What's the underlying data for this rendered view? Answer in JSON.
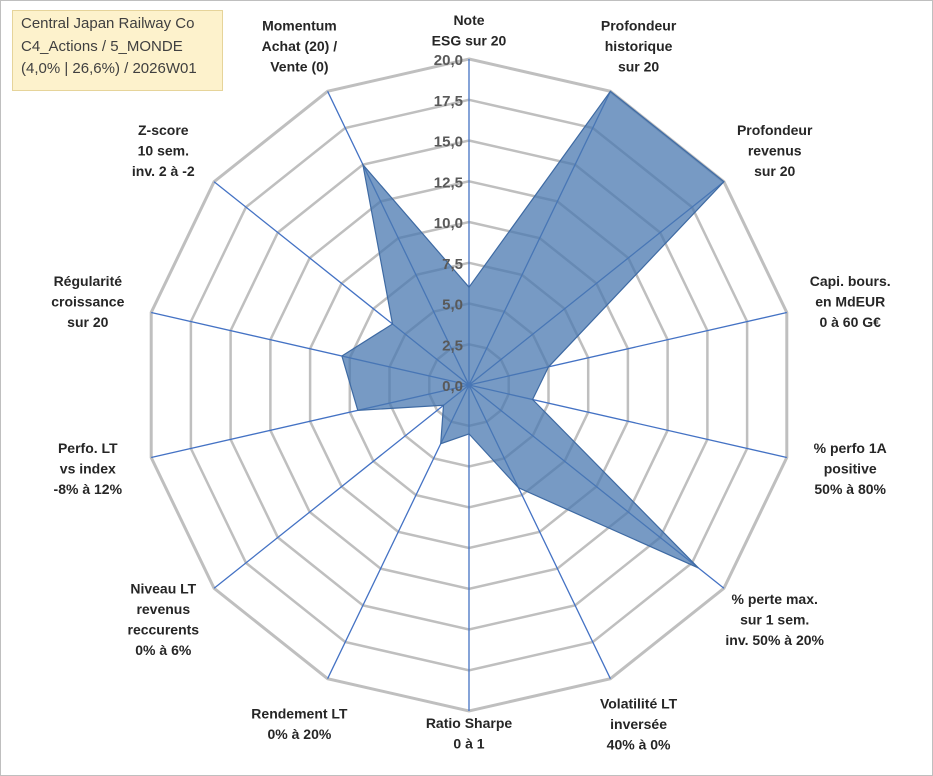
{
  "title_box": {
    "line1": "Central Japan Railway Co",
    "line2": "C4_Actions / 5_MONDE",
    "line3": "(4,0% | 26,6%) / 2026W01"
  },
  "chart_data": {
    "type": "radar",
    "title": "Central Japan Railway Co",
    "rmin": 0,
    "rmax": 20,
    "ticks": [
      0,
      2.5,
      5,
      7.5,
      10,
      12.5,
      15,
      17.5,
      20
    ],
    "tick_labels": [
      "0,0",
      "2,5",
      "5,0",
      "7,5",
      "10,0",
      "12,5",
      "15,0",
      "17,5",
      "20,0"
    ],
    "axes": [
      {
        "label": [
          "Note",
          "ESG sur 20"
        ],
        "value": 6
      },
      {
        "label": [
          "Profondeur",
          "historique",
          "sur 20"
        ],
        "value": 20
      },
      {
        "label": [
          "Profondeur",
          "revenus",
          "sur 20"
        ],
        "value": 20
      },
      {
        "label": [
          "Capi. bours.",
          "en MdEUR",
          "0 à 60 G€"
        ],
        "value": 5
      },
      {
        "label": [
          "% perfo 1A",
          "positive",
          "50% à 80%"
        ],
        "value": 4
      },
      {
        "label": [
          "% perte max.",
          "sur 1 sem.",
          "inv. 50% à 20%"
        ],
        "value": 18
      },
      {
        "label": [
          "Volatilité LT",
          "inversée",
          "40% à 0%"
        ],
        "value": 7
      },
      {
        "label": [
          "Ratio Sharpe",
          "0 à 1"
        ],
        "value": 3
      },
      {
        "label": [
          "Rendement LT",
          "0% à 20%"
        ],
        "value": 4
      },
      {
        "label": [
          "Niveau LT",
          "revenus",
          "reccurents",
          "0% à 6%"
        ],
        "value": 2
      },
      {
        "label": [
          "Perfo. LT",
          "vs index",
          "-8% à 12%"
        ],
        "value": 7
      },
      {
        "label": [
          "Régularité",
          "croissance",
          "sur 20"
        ],
        "value": 8
      },
      {
        "label": [
          "Z-score",
          "10 sem.",
          "inv. 2 à -2"
        ],
        "value": 6
      },
      {
        "label": [
          "Momentum",
          "Achat (20) /",
          "Vente (0)"
        ],
        "value": 15
      }
    ],
    "series": [
      {
        "name": "Central Japan Railway Co",
        "color": "#4a78b0"
      }
    ],
    "colors": {
      "grid": "#bfbfbf",
      "spoke": "#4472c4",
      "fill": "#4a78b0",
      "stroke": "#3e6aa3"
    }
  }
}
